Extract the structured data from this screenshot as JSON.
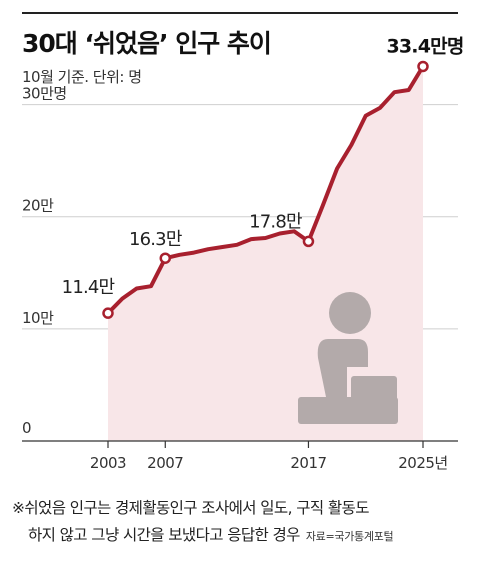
{
  "title": "30대 ‘쉬었음’ 인구 추이",
  "subtitle": "10월 기준. 단위: 명",
  "footnote": {
    "line1": "※쉬었음 인구는 경제활동인구 조사에서 일도, 구직 활동도",
    "line2": "하지 않고 그냥 시간을 보냈다고 응답한 경우",
    "source": "자료=국가통계포털"
  },
  "colors": {
    "line": "#a8202e",
    "area": "#f8e6e8",
    "grid": "#cfcfcf",
    "axis": "#333333",
    "icon": "#b3aaaa"
  },
  "icon": "person-sitting-icon",
  "chart_data": {
    "type": "line",
    "title": "30대 ‘쉬었음’ 인구 추이",
    "unit": "명",
    "xlim": [
      2003,
      2025
    ],
    "ylim": [
      0,
      350000
    ],
    "yticks": [
      {
        "value": 0,
        "label": "0"
      },
      {
        "value": 100000,
        "label": "10만"
      },
      {
        "value": 200000,
        "label": "20만"
      },
      {
        "value": 300000,
        "label": "30만명"
      }
    ],
    "xticks": [
      {
        "value": 2003,
        "label": "2003"
      },
      {
        "value": 2007,
        "label": "2007"
      },
      {
        "value": 2017,
        "label": "2017"
      },
      {
        "value": 2025,
        "label": "2025년"
      }
    ],
    "grid": true,
    "area_fill": true,
    "series": [
      {
        "x": [
          2003,
          2004,
          2005,
          2006,
          2007,
          2008,
          2009,
          2010,
          2011,
          2012,
          2013,
          2014,
          2015,
          2016,
          2017,
          2018,
          2019,
          2020,
          2021,
          2022,
          2023,
          2024,
          2025
        ],
        "values": [
          114000,
          127000,
          136000,
          138000,
          163000,
          166000,
          168000,
          171000,
          173000,
          175000,
          180000,
          181000,
          185000,
          187000,
          178000,
          210000,
          243000,
          264000,
          290000,
          297000,
          311000,
          313000,
          334000
        ]
      }
    ],
    "labeled_points": [
      {
        "x": 2003,
        "label": "11.4만"
      },
      {
        "x": 2007,
        "label": "16.3만"
      },
      {
        "x": 2017,
        "label": "17.8만"
      },
      {
        "x": 2025,
        "label": "33.4만명"
      }
    ]
  }
}
